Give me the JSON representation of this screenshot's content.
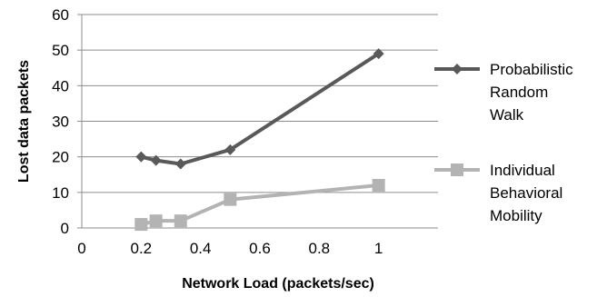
{
  "chart_data": {
    "type": "line",
    "title": "",
    "xlabel": "Network Load (packets/sec)",
    "ylabel": "Lost data packets",
    "xlim": [
      0,
      1.2
    ],
    "ylim": [
      0,
      60
    ],
    "x_ticks": [
      "0",
      "0.2",
      "0.4",
      "0.6",
      "0.8",
      "1"
    ],
    "y_ticks": [
      "0",
      "10",
      "20",
      "30",
      "40",
      "50",
      "60"
    ],
    "grid": "horizontal",
    "legend_position": "right",
    "series": [
      {
        "name": "Probabilistic Random Walk",
        "legend_lines": [
          "Probabilistic",
          "Random",
          "Walk"
        ],
        "marker": "diamond",
        "color": "#595959",
        "points": [
          {
            "x": 0.2,
            "y": 20
          },
          {
            "x": 0.25,
            "y": 19
          },
          {
            "x": 0.333,
            "y": 18
          },
          {
            "x": 0.5,
            "y": 22
          },
          {
            "x": 1.0,
            "y": 49
          }
        ]
      },
      {
        "name": "Individual Behavioral Mobility",
        "legend_lines": [
          "Individual",
          "Behavioral",
          "Mobility"
        ],
        "marker": "square",
        "color": "#b3b3b3",
        "points": [
          {
            "x": 0.2,
            "y": 1
          },
          {
            "x": 0.25,
            "y": 2
          },
          {
            "x": 0.333,
            "y": 2
          },
          {
            "x": 0.5,
            "y": 8
          },
          {
            "x": 1.0,
            "y": 12
          }
        ]
      }
    ]
  }
}
